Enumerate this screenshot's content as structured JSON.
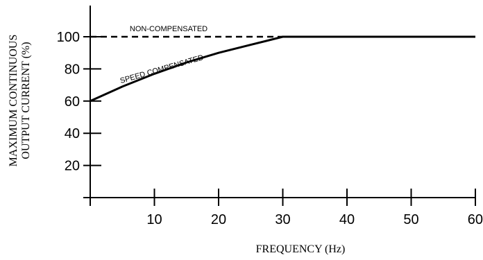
{
  "chart_data": {
    "type": "line",
    "xlabel": "FREQUENCY (Hz)",
    "ylabel_lines": [
      "MAXIMUM CONTINUOUS",
      "OUTPUT CURRENT (%)"
    ],
    "xlim": [
      0,
      60
    ],
    "ylim": [
      0,
      100
    ],
    "x_ticks": [
      10,
      20,
      30,
      40,
      50,
      60
    ],
    "y_ticks": [
      20,
      40,
      60,
      80,
      100
    ],
    "grid": false,
    "series": [
      {
        "name": "NON-COMPENSATED",
        "style": "dashed",
        "x": [
          0,
          30,
          60
        ],
        "y": [
          100,
          100,
          100
        ]
      },
      {
        "name": "SPEED COMPENSATED",
        "style": "solid",
        "x": [
          0,
          5,
          10,
          15,
          20,
          25,
          30,
          60
        ],
        "y": [
          60,
          69,
          77,
          84,
          90,
          95,
          100,
          100
        ]
      }
    ]
  }
}
